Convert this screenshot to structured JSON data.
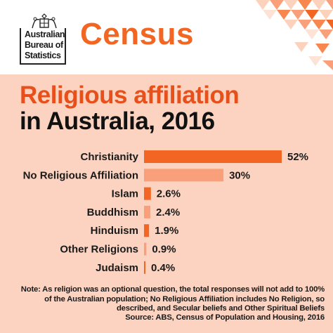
{
  "header": {
    "logo_lines": [
      "Australian",
      "Bureau of",
      "Statistics"
    ],
    "census_label": "Census"
  },
  "colors": {
    "primary_orange": "#f26522",
    "light_orange": "#f9a07a",
    "background": "#fbd3c0"
  },
  "chart_data": {
    "type": "bar",
    "orientation": "horizontal",
    "title": "Religious affiliation",
    "subtitle": "in Australia, 2016",
    "categories": [
      "Christianity",
      "No Religious Affiliation",
      "Islam",
      "Buddhism",
      "Hinduism",
      "Other Religions",
      "Judaism"
    ],
    "values": [
      52,
      30,
      2.6,
      2.4,
      1.9,
      0.9,
      0.4
    ],
    "labels": [
      "52%",
      "30%",
      "2.6%",
      "2.4%",
      "1.9%",
      "0.9%",
      "0.4%"
    ],
    "bar_colors": [
      "#f26522",
      "#f9a07a",
      "#f26522",
      "#f9a07a",
      "#f26522",
      "#f9a07a",
      "#f26522"
    ],
    "unit": "%",
    "xlim": [
      0,
      52
    ],
    "grid": false,
    "legend": "none"
  },
  "footer": {
    "note": "Note: As religion was an optional question, the total responses will not add to 100% of the Australian population; No Religious Affiliation includes No Religion, so described, and Secular beliefs and Other Spiritual Beliefs",
    "source": "Source: ABS, Census of Population and Housing, 2016"
  }
}
